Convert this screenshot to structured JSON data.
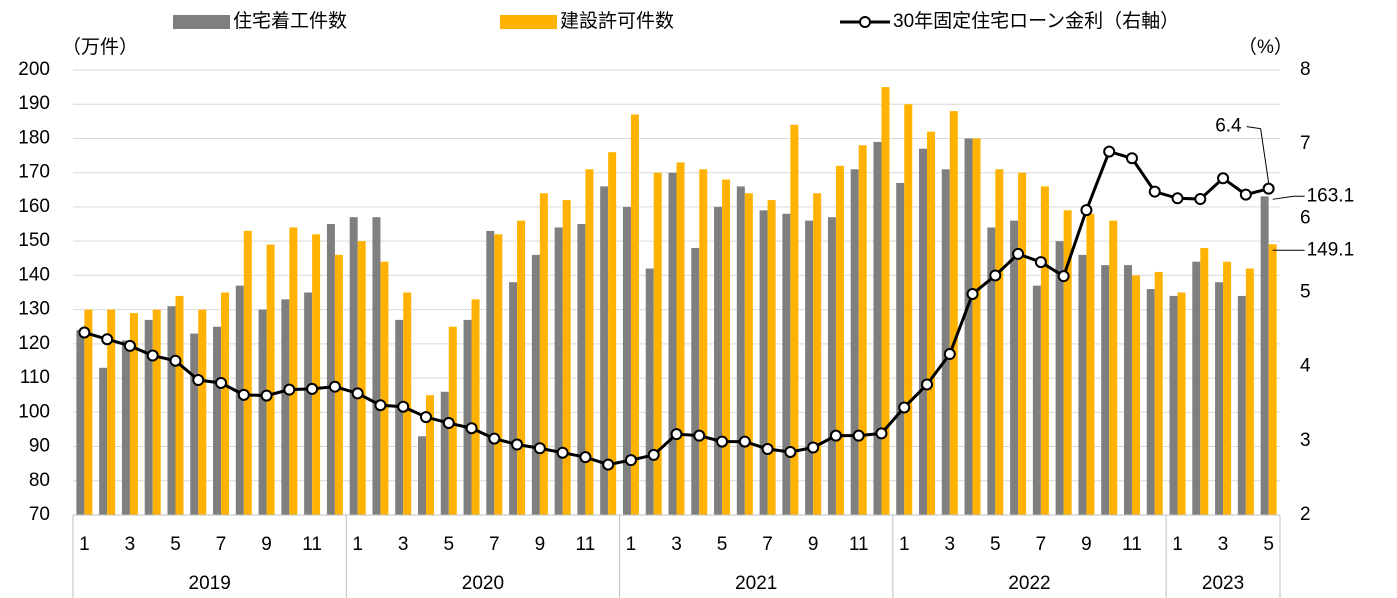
{
  "chart_data": {
    "type": "bar_line",
    "y_label": "（万件）",
    "y2_label": "（%）",
    "categories": [
      "1",
      null,
      "3",
      null,
      "5",
      null,
      "7",
      null,
      "9",
      null,
      "11",
      null,
      "1",
      null,
      "3",
      null,
      "5",
      null,
      "7",
      null,
      "9",
      null,
      "11",
      null,
      "1",
      null,
      "3",
      null,
      "5",
      null,
      "7",
      null,
      "9",
      null,
      "11",
      null,
      "1",
      null,
      "3",
      null,
      "5",
      null,
      "7",
      null,
      "9",
      null,
      "11",
      null,
      "1",
      null,
      "3",
      null,
      "5"
    ],
    "year_groups": [
      {
        "label": "2019",
        "span": 12
      },
      {
        "label": "2020",
        "span": 12
      },
      {
        "label": "2021",
        "span": 12
      },
      {
        "label": "2022",
        "span": 12
      },
      {
        "label": "2023",
        "span": 5
      }
    ],
    "series": [
      {
        "name": "住宅着工件数",
        "type": "bar",
        "color": "#7f7f7f",
        "values": [
          124,
          113,
          121,
          127,
          131,
          123,
          125,
          137,
          130,
          133,
          135,
          155,
          157,
          157,
          127,
          93,
          106,
          127,
          153,
          138,
          146,
          154,
          155,
          166,
          160,
          142,
          170,
          148,
          160,
          166,
          159,
          158,
          156,
          157,
          171,
          179,
          167,
          177,
          171,
          180,
          154,
          156,
          137,
          150,
          146,
          143,
          143,
          136,
          134,
          144,
          138,
          134,
          163.1
        ],
        "value_labels": [
          null,
          null,
          null,
          null,
          null,
          null,
          null,
          null,
          null,
          null,
          null,
          null,
          null,
          null,
          null,
          null,
          null,
          null,
          null,
          null,
          null,
          null,
          null,
          null,
          null,
          null,
          null,
          null,
          null,
          null,
          null,
          null,
          null,
          null,
          null,
          null,
          null,
          null,
          null,
          null,
          null,
          null,
          null,
          null,
          null,
          null,
          null,
          null,
          null,
          null,
          null,
          null,
          "163.1"
        ]
      },
      {
        "name": "建設許可件数",
        "type": "bar",
        "color": "#ffb300",
        "values": [
          130,
          130,
          129,
          130,
          134,
          130,
          135,
          153,
          149,
          154,
          152,
          146,
          150,
          144,
          135,
          105,
          125,
          133,
          152,
          156,
          164,
          162,
          171,
          176,
          187,
          170,
          173,
          171,
          168,
          164,
          162,
          184,
          164,
          172,
          178,
          195,
          190,
          182,
          188,
          180,
          171,
          170,
          166,
          159,
          158,
          156,
          140,
          141,
          135,
          148,
          144,
          142,
          149.1
        ],
        "value_labels": [
          null,
          null,
          null,
          null,
          null,
          null,
          null,
          null,
          null,
          null,
          null,
          null,
          null,
          null,
          null,
          null,
          null,
          null,
          null,
          null,
          null,
          null,
          null,
          null,
          null,
          null,
          null,
          null,
          null,
          null,
          null,
          null,
          null,
          null,
          null,
          null,
          null,
          null,
          null,
          null,
          null,
          null,
          null,
          null,
          null,
          null,
          null,
          null,
          null,
          null,
          null,
          null,
          "149.1"
        ]
      },
      {
        "name": "30年固定住宅ローン金利（右軸）",
        "type": "line",
        "axis": "y2",
        "color": "#000000",
        "values": [
          4.46,
          4.37,
          4.28,
          4.15,
          4.08,
          3.82,
          3.78,
          3.62,
          3.61,
          3.69,
          3.7,
          3.73,
          3.64,
          3.48,
          3.46,
          3.32,
          3.24,
          3.17,
          3.03,
          2.95,
          2.9,
          2.84,
          2.78,
          2.68,
          2.74,
          2.81,
          3.09,
          3.07,
          2.99,
          2.99,
          2.89,
          2.85,
          2.91,
          3.07,
          3.07,
          3.1,
          3.45,
          3.76,
          4.17,
          4.98,
          5.23,
          5.52,
          5.41,
          5.22,
          6.11,
          6.9,
          6.81,
          6.36,
          6.27,
          6.26,
          6.54,
          6.32,
          6.4
        ],
        "value_labels": [
          null,
          null,
          null,
          null,
          null,
          null,
          null,
          null,
          null,
          null,
          null,
          null,
          null,
          null,
          null,
          null,
          null,
          null,
          null,
          null,
          null,
          null,
          null,
          null,
          null,
          null,
          null,
          null,
          null,
          null,
          null,
          null,
          null,
          null,
          null,
          null,
          null,
          null,
          null,
          null,
          null,
          null,
          null,
          null,
          null,
          null,
          null,
          null,
          null,
          null,
          null,
          null,
          "6.4"
        ]
      }
    ],
    "ylim": [
      70,
      200
    ],
    "yticks": [
      70,
      80,
      90,
      100,
      110,
      120,
      130,
      140,
      150,
      160,
      170,
      180,
      190,
      200
    ],
    "y2lim": [
      2,
      8
    ],
    "y2ticks": [
      2,
      3,
      4,
      5,
      6,
      7,
      8
    ],
    "grid": true,
    "legend": "top"
  }
}
